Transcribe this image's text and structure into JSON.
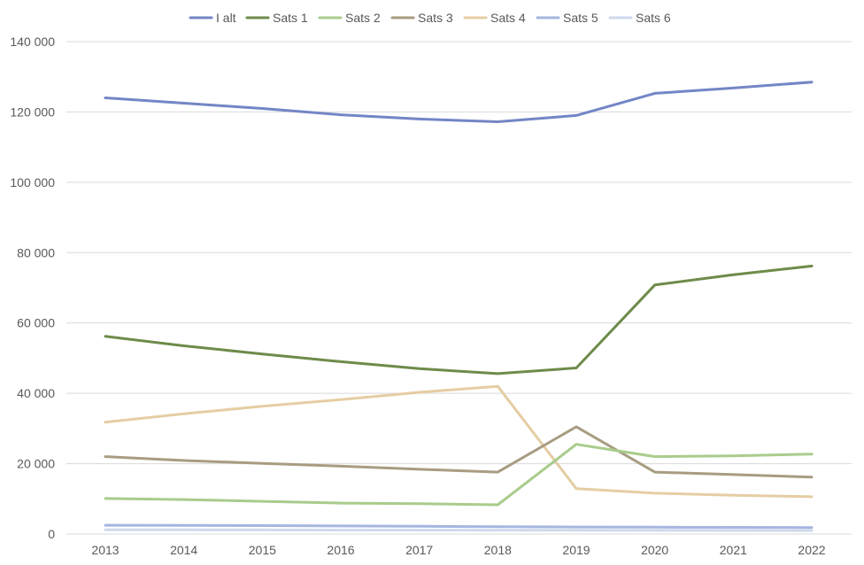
{
  "chart_data": {
    "type": "line",
    "title": "",
    "xlabel": "",
    "ylabel": "",
    "legend_position": "top",
    "grid": true,
    "ylim": [
      0,
      140000
    ],
    "y_ticks": [
      0,
      20000,
      40000,
      60000,
      80000,
      100000,
      120000,
      140000
    ],
    "y_tick_labels": [
      "0",
      "20 000",
      "40 000",
      "60 000",
      "80 000",
      "100 000",
      "120 000",
      "140 000"
    ],
    "categories": [
      "2013",
      "2014",
      "2015",
      "2016",
      "2017",
      "2018",
      "2019",
      "2020",
      "2021",
      "2022"
    ],
    "series": [
      {
        "name": "I alt",
        "color": "#7386c6",
        "values": [
          124000,
          122500,
          121000,
          119200,
          118000,
          117200,
          119000,
          125300,
          126800,
          128500
        ]
      },
      {
        "name": "Sats 1",
        "color": "#6d8b4a",
        "values": [
          56200,
          53500,
          51200,
          49000,
          47000,
          45600,
          47200,
          70800,
          73700,
          76200
        ]
      },
      {
        "name": "Sats 2",
        "color": "#a9cc8c",
        "values": [
          10100,
          9800,
          9300,
          8800,
          8600,
          8300,
          25500,
          22000,
          22200,
          22700
        ]
      },
      {
        "name": "Sats 3",
        "color": "#a89c82",
        "values": [
          22000,
          20900,
          20100,
          19300,
          18400,
          17600,
          30500,
          17600,
          16900,
          16200
        ]
      },
      {
        "name": "Sats 4",
        "color": "#e5cda4",
        "values": [
          31800,
          34200,
          36300,
          38200,
          40300,
          42000,
          12900,
          11600,
          11000,
          10600
        ]
      },
      {
        "name": "Sats 5",
        "color": "#a6b6df",
        "values": [
          2500,
          2450,
          2400,
          2300,
          2200,
          2100,
          2000,
          1950,
          1900,
          1850
        ]
      },
      {
        "name": "Sats 6",
        "color": "#cfd9ec",
        "values": [
          1200,
          1180,
          1150,
          1120,
          1100,
          1080,
          1050,
          1020,
          1000,
          980
        ]
      }
    ]
  }
}
